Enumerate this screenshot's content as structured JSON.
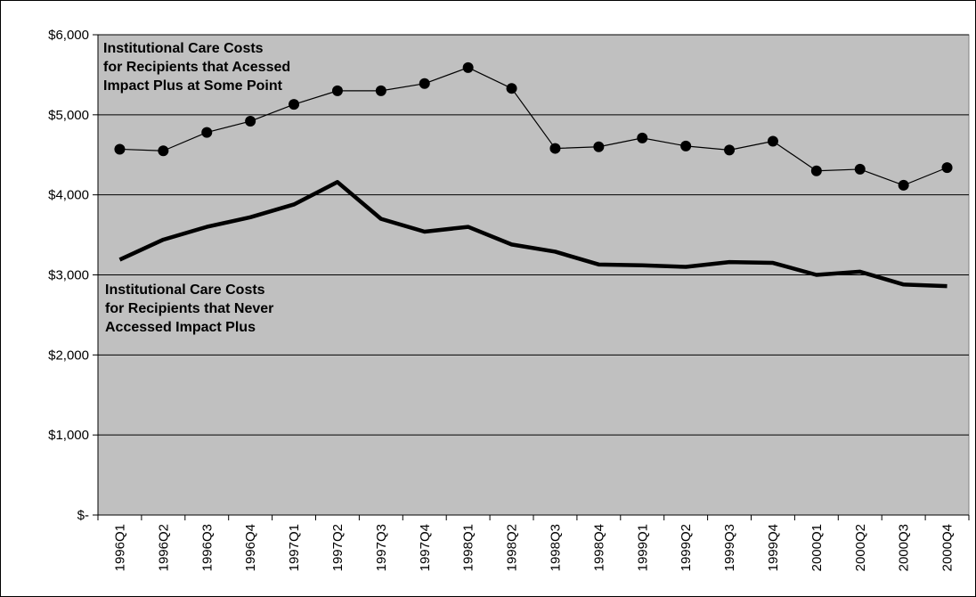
{
  "chart_data": {
    "type": "line",
    "categories": [
      "1996Q1",
      "1996Q2",
      "1996Q3",
      "1996Q4",
      "1997Q1",
      "1997Q2",
      "1997Q3",
      "1997Q4",
      "1998Q1",
      "1998Q2",
      "1998Q3",
      "1998Q4",
      "1999Q1",
      "1999Q2",
      "1999Q3",
      "1999Q4",
      "2000Q1",
      "2000Q2",
      "2000Q3",
      "2000Q4"
    ],
    "series": [
      {
        "values": [
          4570,
          4550,
          4780,
          4920,
          5130,
          5300,
          5300,
          5390,
          5590,
          5330,
          4580,
          4600,
          4710,
          4610,
          4560,
          4670,
          4300,
          4320,
          4120,
          4340
        ],
        "color": "#000000",
        "markers": true,
        "line_width": "thin"
      },
      {
        "values": [
          3190,
          3440,
          3600,
          3720,
          3880,
          4160,
          3700,
          3540,
          3600,
          3380,
          3290,
          3130,
          3120,
          3100,
          3160,
          3150,
          3000,
          3040,
          2880,
          2860
        ],
        "color": "#000000",
        "markers": false,
        "line_width": "thick"
      }
    ],
    "annotations": [
      {
        "lines": [
          "Institutional Care Costs",
          "for Recipients that Acessed",
          "Impact Plus at Some Point"
        ]
      },
      {
        "lines": [
          "Institutional Care Costs",
          "for Recipients that Never",
          "Accessed Impact Plus"
        ]
      }
    ],
    "y_tick_labels": [
      "$-",
      "$1,000",
      "$2,000",
      "$3,000",
      "$4,000",
      "$5,000",
      "$6,000"
    ],
    "y_tick_values": [
      0,
      1000,
      2000,
      3000,
      4000,
      5000,
      6000
    ],
    "ylim": [
      0,
      6000
    ],
    "plot_background": "#c0c0c0",
    "grid": true,
    "legend": "none"
  }
}
